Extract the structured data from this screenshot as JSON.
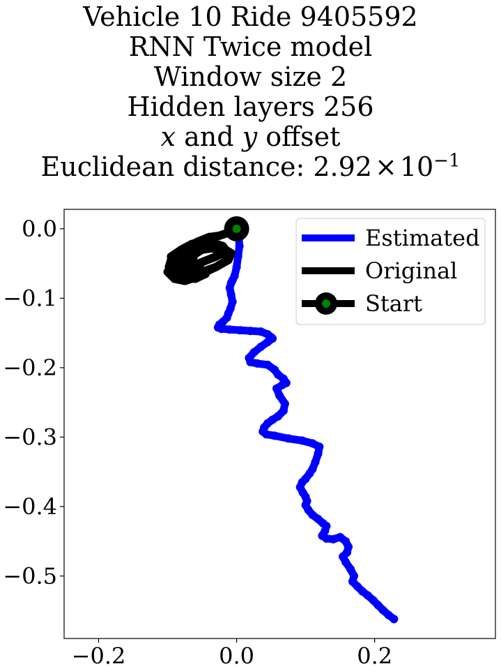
{
  "title": {
    "line1": "Vehicle 10 Ride 9405592",
    "line2": "RNN Twice model",
    "line3": "Window size 2",
    "line4": "Hidden layers 256",
    "line5_x": "x",
    "line5_and": " and ",
    "line5_y": "y",
    "line5_rest": " offset",
    "line6_prefix": "Euclidean distance: 2.92",
    "line6_times": "×",
    "line6_base": "10",
    "line6_exp": "−1"
  },
  "chart_data": {
    "type": "line",
    "xlim": [
      -0.25,
      0.375
    ],
    "ylim": [
      -0.59,
      0.028
    ],
    "xticks": [
      {
        "value": -0.2,
        "label": "−0.2"
      },
      {
        "value": 0.0,
        "label": "0.0"
      },
      {
        "value": 0.2,
        "label": "0.2"
      }
    ],
    "yticks": [
      {
        "value": 0.0,
        "label": "0.0"
      },
      {
        "value": -0.1,
        "label": "−0.1"
      },
      {
        "value": -0.2,
        "label": "−0.2"
      },
      {
        "value": -0.3,
        "label": "−0.3"
      },
      {
        "value": -0.4,
        "label": "−0.4"
      },
      {
        "value": -0.5,
        "label": "−0.5"
      }
    ],
    "grid": false,
    "legend_position": "top-right",
    "series": [
      {
        "name": "Estimated",
        "color": "#0000ff",
        "x": [
          0.0,
          0.003,
          0.004,
          0.002,
          0.0,
          -0.003,
          -0.006,
          -0.008,
          -0.01,
          -0.008,
          -0.006,
          -0.009,
          -0.012,
          -0.014,
          -0.02,
          -0.025,
          -0.027,
          -0.022,
          -0.01,
          0.005,
          0.02,
          0.035,
          0.045,
          0.05,
          0.052,
          0.045,
          0.035,
          0.025,
          0.018,
          0.02,
          0.03,
          0.045,
          0.055,
          0.06,
          0.068,
          0.072,
          0.066,
          0.058,
          0.062,
          0.07,
          0.068,
          0.06,
          0.052,
          0.045,
          0.04,
          0.038,
          0.043,
          0.055,
          0.075,
          0.095,
          0.11,
          0.12,
          0.118,
          0.114,
          0.11,
          0.106,
          0.1,
          0.095,
          0.092,
          0.096,
          0.1,
          0.102,
          0.1,
          0.104,
          0.11,
          0.118,
          0.125,
          0.13,
          0.128,
          0.124,
          0.13,
          0.14,
          0.15,
          0.158,
          0.162,
          0.16,
          0.154,
          0.158,
          0.165,
          0.17,
          0.168,
          0.175,
          0.182,
          0.19,
          0.198,
          0.205,
          0.212,
          0.22,
          0.228
        ],
        "y": [
          0.0,
          -0.01,
          -0.025,
          -0.04,
          -0.055,
          -0.068,
          -0.074,
          -0.078,
          -0.085,
          -0.095,
          -0.105,
          -0.115,
          -0.122,
          -0.128,
          -0.134,
          -0.138,
          -0.142,
          -0.144,
          -0.145,
          -0.146,
          -0.147,
          -0.148,
          -0.152,
          -0.156,
          -0.158,
          -0.163,
          -0.17,
          -0.178,
          -0.186,
          -0.192,
          -0.194,
          -0.196,
          -0.203,
          -0.21,
          -0.216,
          -0.222,
          -0.225,
          -0.23,
          -0.24,
          -0.252,
          -0.262,
          -0.27,
          -0.275,
          -0.28,
          -0.286,
          -0.292,
          -0.296,
          -0.298,
          -0.302,
          -0.305,
          -0.309,
          -0.314,
          -0.324,
          -0.336,
          -0.346,
          -0.352,
          -0.36,
          -0.365,
          -0.372,
          -0.38,
          -0.386,
          -0.392,
          -0.398,
          -0.405,
          -0.412,
          -0.418,
          -0.424,
          -0.428,
          -0.435,
          -0.442,
          -0.446,
          -0.447,
          -0.444,
          -0.45,
          -0.458,
          -0.466,
          -0.472,
          -0.48,
          -0.49,
          -0.5,
          -0.508,
          -0.515,
          -0.522,
          -0.528,
          -0.535,
          -0.542,
          -0.549,
          -0.556,
          -0.562
        ]
      },
      {
        "name": "Original",
        "color": "#000000",
        "x": [
          0.0,
          -0.01,
          -0.025,
          -0.04,
          -0.055,
          -0.07,
          -0.085,
          -0.095,
          -0.098,
          -0.085,
          -0.07,
          -0.05,
          -0.03,
          -0.015,
          -0.02,
          -0.035,
          -0.05,
          -0.065,
          -0.08,
          -0.095,
          -0.088,
          -0.07,
          -0.05,
          -0.03,
          -0.012,
          -0.008,
          -0.02,
          -0.04,
          -0.06,
          -0.075,
          -0.09,
          -0.1,
          -0.09,
          -0.075,
          -0.06,
          -0.045,
          -0.03,
          -0.018,
          -0.012,
          -0.02,
          -0.035,
          -0.05,
          -0.06,
          -0.065,
          -0.055,
          -0.045,
          -0.06,
          -0.075,
          -0.085,
          -0.08,
          -0.07,
          -0.06
        ],
        "y": [
          0.0,
          -0.005,
          -0.01,
          -0.012,
          -0.018,
          -0.025,
          -0.035,
          -0.045,
          -0.055,
          -0.06,
          -0.055,
          -0.048,
          -0.04,
          -0.032,
          -0.025,
          -0.02,
          -0.018,
          -0.022,
          -0.03,
          -0.04,
          -0.05,
          -0.058,
          -0.062,
          -0.055,
          -0.045,
          -0.035,
          -0.028,
          -0.024,
          -0.03,
          -0.04,
          -0.05,
          -0.062,
          -0.072,
          -0.075,
          -0.07,
          -0.062,
          -0.055,
          -0.048,
          -0.04,
          -0.032,
          -0.028,
          -0.03,
          -0.036,
          -0.045,
          -0.055,
          -0.065,
          -0.072,
          -0.068,
          -0.06,
          -0.05,
          -0.045,
          -0.05
        ]
      }
    ],
    "start": {
      "name": "Start",
      "x": 0.0,
      "y": 0.0,
      "outer_color": "#000000",
      "inner_color": "#008000"
    }
  }
}
